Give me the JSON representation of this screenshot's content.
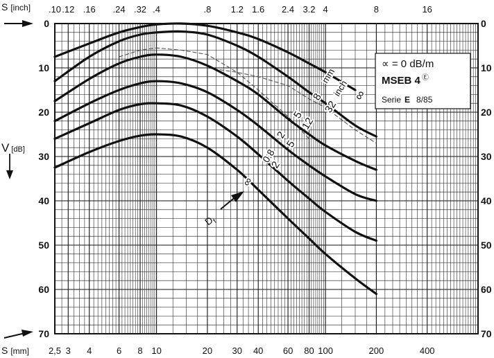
{
  "chart_data": {
    "type": "line",
    "title": "",
    "top_axis": {
      "label_prefix": "S",
      "label_unit": "[inch]",
      "ticks": [
        ".10",
        ".12",
        ".16",
        ".24",
        ".32",
        ".4",
        ".8",
        "1.2",
        "1.6",
        "2.4",
        "3.2",
        "4",
        "8",
        "16"
      ],
      "tick_values_mm": [
        2.5,
        3,
        4,
        6,
        8,
        10,
        20,
        30,
        40,
        60,
        80,
        100,
        200,
        400
      ]
    },
    "bottom_axis": {
      "label_prefix": "S",
      "label_unit": "[mm]",
      "ticks": [
        "2,5",
        "3",
        "4",
        "6",
        "8",
        "10",
        "20",
        "30",
        "40",
        "60",
        "80",
        "100",
        "200",
        "400"
      ],
      "tick_values": [
        2.5,
        3,
        4,
        6,
        8,
        10,
        20,
        30,
        40,
        60,
        80,
        100,
        200,
        400
      ],
      "scale": "log",
      "xlim": [
        2.5,
        800
      ]
    },
    "y_axis": {
      "label": "V",
      "unit": "[dB]",
      "ticks": [
        "0",
        "10",
        "20",
        "30",
        "40",
        "50",
        "60",
        "70"
      ],
      "tick_values": [
        0,
        10,
        20,
        30,
        40,
        50,
        60,
        70
      ],
      "ylim": [
        0,
        70
      ],
      "inverted": true
    },
    "grid": true,
    "series": [
      {
        "name": "8 mm",
        "x": [
          2.5,
          4,
          6,
          8,
          10,
          14,
          20,
          30,
          40,
          60,
          80,
          100,
          150
        ],
        "y": [
          7.5,
          4.5,
          2,
          0.8,
          0.2,
          0,
          0.5,
          2,
          3.5,
          6.5,
          9,
          11,
          15
        ]
      },
      {
        "name": "32 inch",
        "x": [
          2.5,
          4,
          6,
          8,
          10,
          14,
          20,
          30,
          40,
          60,
          80,
          100,
          150,
          200
        ],
        "y": [
          13,
          7.5,
          4,
          2.5,
          2,
          1.8,
          2.5,
          5,
          7.5,
          12,
          15.5,
          18,
          23,
          25.5
        ]
      },
      {
        "name": "12",
        "x": [
          2.5,
          4,
          6,
          8,
          10,
          14,
          20,
          30,
          40,
          60,
          80,
          100,
          150,
          200
        ],
        "y": [
          17.5,
          12.5,
          9,
          7.5,
          7,
          7.5,
          9.5,
          13,
          16,
          21.5,
          25,
          27.5,
          31,
          33
        ]
      },
      {
        "name": "5",
        "x": [
          2.5,
          4,
          6,
          8,
          10,
          14,
          20,
          30,
          40,
          60,
          80,
          100,
          150,
          200
        ],
        "y": [
          22,
          18,
          15,
          13.5,
          13,
          13.5,
          15.5,
          19.5,
          23,
          28.5,
          32,
          34.5,
          38.5,
          40
        ]
      },
      {
        "name": "2",
        "x": [
          2.5,
          4,
          6,
          8,
          10,
          14,
          20,
          30,
          40,
          60,
          80,
          100,
          150,
          200
        ],
        "y": [
          26,
          22.5,
          19.5,
          18.2,
          18,
          18.5,
          21,
          25.5,
          29.5,
          35.5,
          39.5,
          42.5,
          47,
          49
        ]
      },
      {
        "name": "0.8",
        "x": [
          2.5,
          4,
          6,
          8,
          10,
          14,
          20,
          30,
          40,
          60,
          80,
          100,
          150,
          200
        ],
        "y": [
          32.5,
          29,
          26.5,
          25.3,
          25,
          25.5,
          28,
          33,
          37.5,
          44,
          48.5,
          52,
          57.5,
          61
        ]
      }
    ],
    "dashed_series": [
      {
        "x": [
          20,
          30,
          40,
          60,
          80,
          100,
          150,
          200
        ],
        "y": [
          10,
          11,
          12,
          14,
          17,
          19,
          24,
          27
        ]
      },
      {
        "x": [
          6,
          8,
          10,
          14,
          20,
          30,
          40,
          60,
          80
        ],
        "y": [
          7.5,
          6,
          5.5,
          6,
          7,
          11,
          15,
          21,
          26
        ]
      }
    ],
    "legend": {
      "alpha_line": "∝ = 0 dB/m",
      "model": "MSEB 4",
      "model_superscript": "Ⓔ",
      "serie_word": "Serie",
      "serie_letter": "E",
      "serie_date": "8/85"
    },
    "annotations": {
      "df_label": "D",
      "df_subscript": "f",
      "curve_labels_mm": [
        "mm",
        "8",
        "5",
        "2",
        "0.8"
      ],
      "curve_labels_inch": [
        "inch",
        "32",
        "12",
        "5",
        "2"
      ],
      "infinity": "∞"
    }
  }
}
